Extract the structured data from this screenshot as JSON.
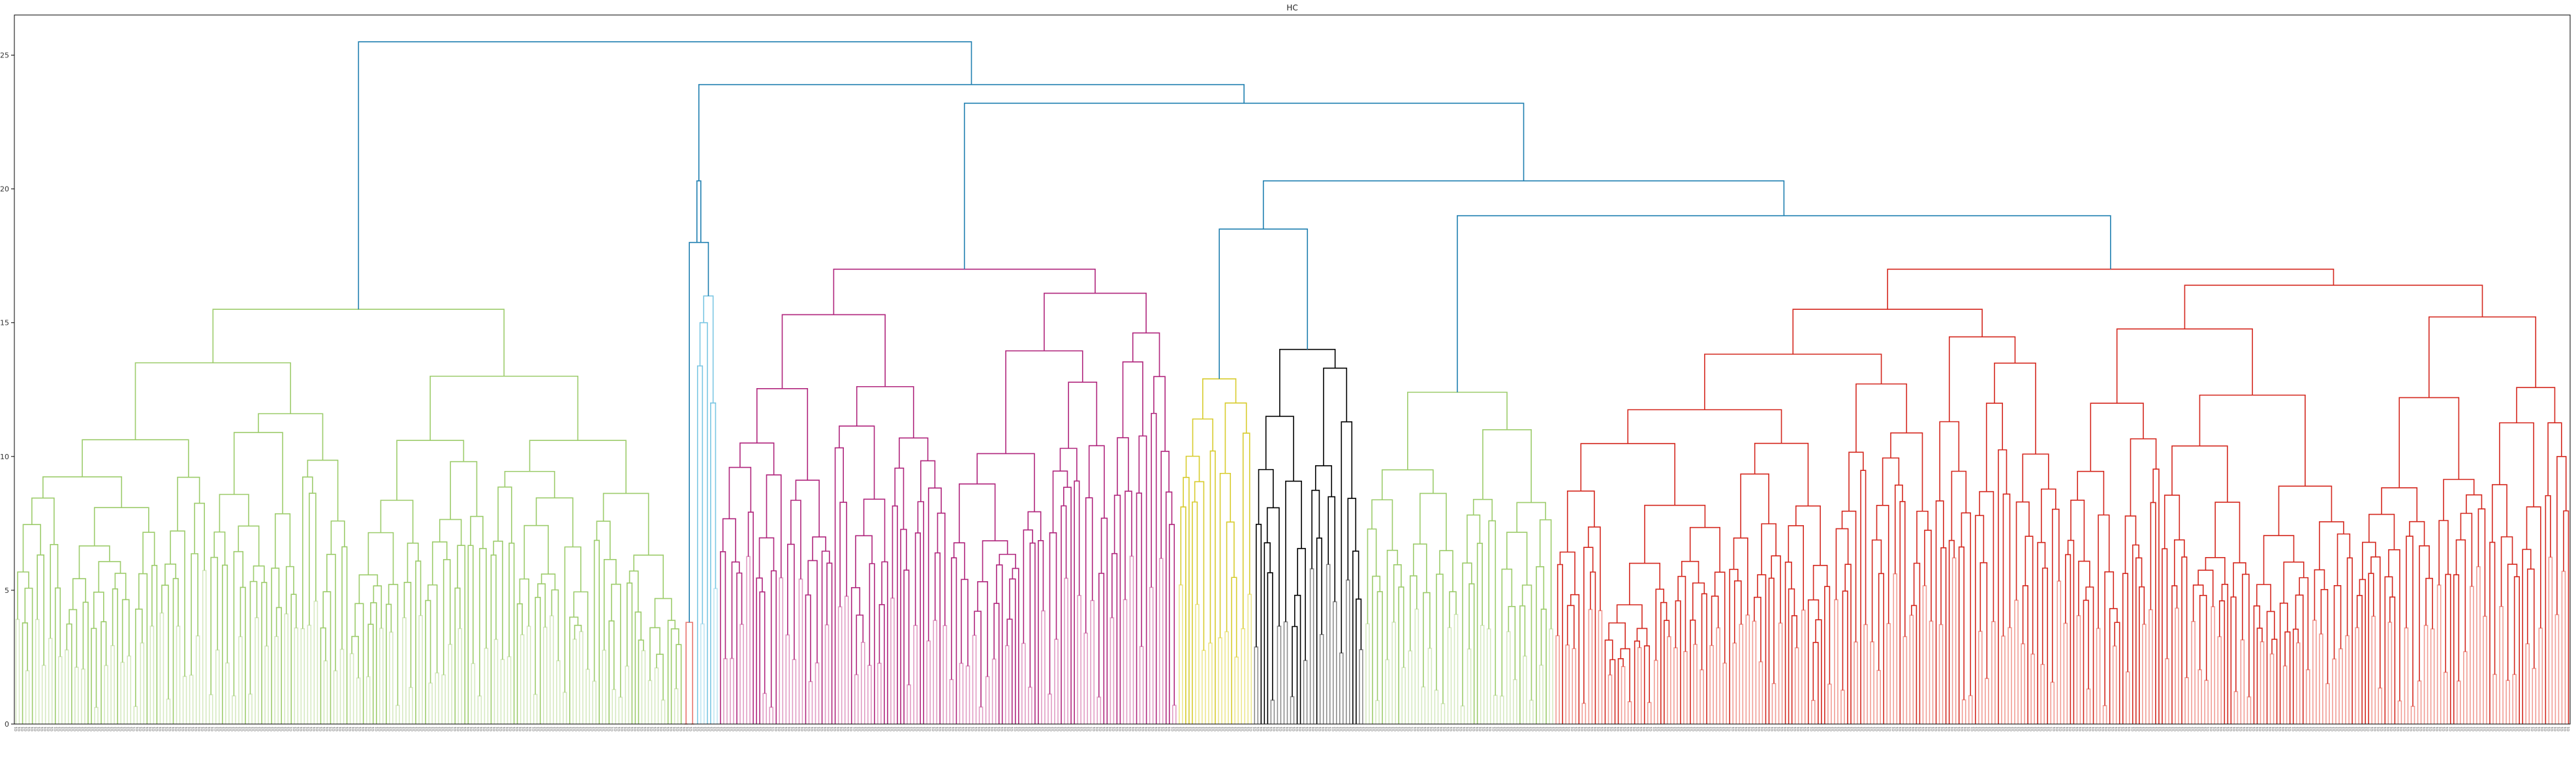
{
  "chart_data": {
    "type": "dendrogram",
    "title": "HC",
    "xlabel": "",
    "ylabel": "",
    "ylim": [
      0,
      26.5
    ],
    "yticks": [
      0,
      5,
      10,
      15,
      20,
      25
    ],
    "grid": false,
    "leaf_label_text": "O1",
    "leaf_count": 780,
    "above_threshold_color": "#1f7fb0",
    "clusters": [
      {
        "color": "#9dcc6c",
        "fill": "#d6e9c1",
        "leaf_fraction": 0.2615,
        "height": 15.5,
        "left_height": 13.5,
        "right_height": 13.0
      },
      {
        "color": "#e8746d",
        "fill": "#f2a49c",
        "leaf_fraction": 0.0048,
        "height": 3.8,
        "left_height": 0,
        "right_height": 0
      },
      {
        "color": "#7cc7e3",
        "fill": "#bfe5f2",
        "leaf_fraction": 0.009,
        "height": 16.0,
        "left_height": 15.0,
        "right_height": 12.0
      },
      {
        "color": "#b0267d",
        "fill": "#e19cc4",
        "leaf_fraction": 0.18,
        "height": 17.0,
        "left_height": 15.3,
        "right_height": 16.1
      },
      {
        "color": "#d8cc2e",
        "fill": "#ede78e",
        "leaf_fraction": 0.03,
        "height": 12.9,
        "left_height": 11.4,
        "right_height": 12.0
      },
      {
        "color": "#000000",
        "fill": "#8c8c8c",
        "leaf_fraction": 0.043,
        "height": 14.0,
        "left_height": 11.5,
        "right_height": 13.3
      },
      {
        "color": "#9dcc6c",
        "fill": "#d6e9c1",
        "leaf_fraction": 0.074,
        "height": 12.4,
        "left_height": 9.5,
        "right_height": 11.0
      },
      {
        "color": "#d4281f",
        "fill": "#f19c94",
        "leaf_fraction": 0.3977,
        "height": 17.0,
        "left_height": 15.5,
        "right_height": 16.4
      }
    ],
    "top_links": [
      {
        "left_cluster": 0,
        "right_link": "L_all",
        "height": 25.5
      },
      {
        "id": "L_all",
        "left_link": "L_b",
        "right_link": "L_c",
        "height": 23.9
      },
      {
        "id": "L_b",
        "left_cluster": 1,
        "right_link": "L_b2",
        "height": 20.3
      },
      {
        "id": "L_b2",
        "left_link": "L_b3",
        "right_cluster": 2,
        "height": 18.0
      },
      {
        "id": "L_b3",
        "left_cluster": 1,
        "right_cluster": 2,
        "height": 0
      },
      {
        "id": "L_c",
        "left_cluster": 3,
        "right_link": "L_d",
        "height": 23.2
      },
      {
        "id": "L_d",
        "left_link": "L_e",
        "right_link": "L_f",
        "height": 20.3
      },
      {
        "id": "L_e",
        "left_cluster": 4,
        "right_cluster": 5,
        "height": 18.5
      },
      {
        "id": "L_f",
        "left_cluster": 6,
        "right_cluster": 7,
        "height": 19.0
      }
    ]
  }
}
